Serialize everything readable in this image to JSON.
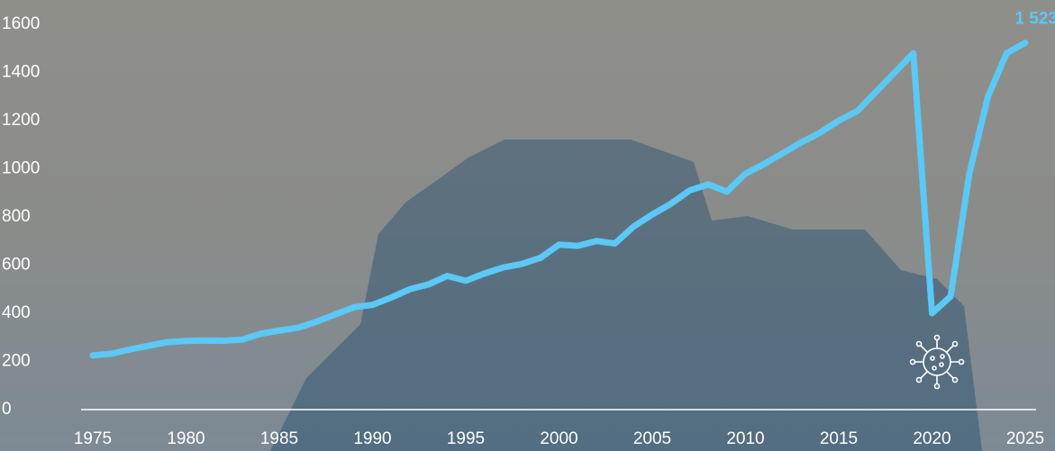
{
  "chart_data": {
    "type": "line",
    "x": [
      1975,
      1976,
      1977,
      1978,
      1979,
      1980,
      1981,
      1982,
      1983,
      1984,
      1985,
      1986,
      1987,
      1988,
      1989,
      1990,
      1991,
      1992,
      1993,
      1994,
      1995,
      1996,
      1997,
      1998,
      1999,
      2000,
      2001,
      2002,
      2003,
      2004,
      2005,
      2006,
      2007,
      2008,
      2009,
      2010,
      2011,
      2012,
      2013,
      2014,
      2015,
      2016,
      2017,
      2018,
      2019,
      2020,
      2021,
      2022,
      2023,
      2024,
      2025
    ],
    "series": [
      {
        "color": "#5bc8f5",
        "values": [
          225,
          232,
          250,
          265,
          280,
          285,
          287,
          286,
          290,
          315,
          328,
          340,
          365,
          395,
          425,
          435,
          465,
          500,
          520,
          555,
          535,
          565,
          590,
          605,
          630,
          685,
          680,
          700,
          690,
          760,
          810,
          855,
          910,
          935,
          905,
          980,
          1020,
          1065,
          1110,
          1150,
          1200,
          1240,
          1320,
          1400,
          1480,
          400,
          470,
          980,
          1300,
          1480,
          1523
        ],
        "value_labels": [
          null,
          null,
          null,
          null,
          null,
          null,
          null,
          null,
          null,
          null,
          null,
          null,
          null,
          null,
          null,
          null,
          null,
          null,
          null,
          null,
          null,
          null,
          null,
          null,
          null,
          null,
          null,
          null,
          null,
          null,
          null,
          null,
          null,
          null,
          null,
          null,
          null,
          null,
          null,
          null,
          null,
          null,
          null,
          null,
          null,
          null,
          null,
          null,
          null,
          null,
          "1 523"
        ]
      }
    ],
    "xlim": [
      1975,
      2025
    ],
    "xticks": [
      1975,
      1980,
      1985,
      1990,
      1995,
      2000,
      2005,
      2010,
      2015,
      2020,
      2025
    ],
    "ylim": [
      0,
      1600
    ],
    "yticks": [
      0,
      200,
      400,
      600,
      800,
      1000,
      1200,
      1400,
      1600
    ]
  }
}
